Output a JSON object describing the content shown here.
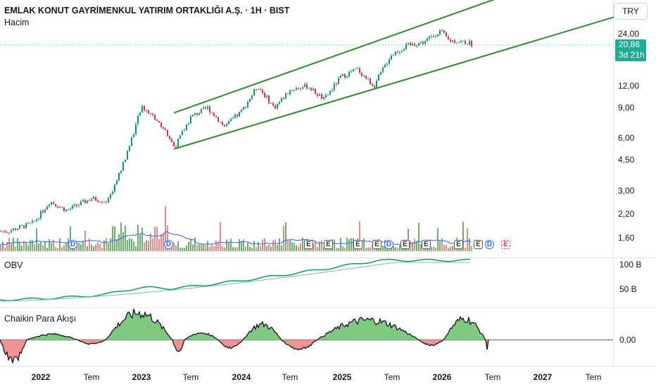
{
  "header": {
    "title": "EMLAK KONUT GAYRİMENKUL YATIRIM ORTAKLIĞI A.Ş. · 1H · BIST",
    "volume_label": "Hacim"
  },
  "currency": "TRY",
  "last_price": {
    "value": "20,86",
    "countdown": "3d 21h",
    "color": "#22ab94"
  },
  "price_axis": {
    "scale": "log",
    "ticks": [
      "24,00",
      "12,00",
      "9,00",
      "6,00",
      "4,50",
      "3,00",
      "2,20",
      "1,60"
    ]
  },
  "panes": {
    "obv": {
      "label": "OBV",
      "ticks": [
        "100 B",
        "50 B"
      ]
    },
    "chaikin": {
      "label": "Chaikin Para Akışı",
      "ticks": [
        "0,00"
      ]
    }
  },
  "time_axis": [
    {
      "label": "2022",
      "year": true
    },
    {
      "label": "Tem",
      "year": false
    },
    {
      "label": "2023",
      "year": true
    },
    {
      "label": "Tem",
      "year": false
    },
    {
      "label": "2024",
      "year": true
    },
    {
      "label": "Tem",
      "year": false
    },
    {
      "label": "2025",
      "year": true
    },
    {
      "label": "Tem",
      "year": false
    },
    {
      "label": "2026",
      "year": true
    },
    {
      "label": "Tem",
      "year": false
    },
    {
      "label": "2027",
      "year": true
    },
    {
      "label": "Tem",
      "year": false
    }
  ],
  "event_markers": {
    "dividend": "D",
    "earnings": "E"
  },
  "colors": {
    "up": "#22ab94",
    "down": "#f23645",
    "candle_up": "#089981",
    "candle_down": "#e03040",
    "channel": "#2e8b2e",
    "volume_ma": "#2962ff",
    "obv_line": "#089981"
  },
  "chart_data": {
    "type": "candlestick",
    "title": "EMLAK KONUT GAYRİMENKUL YATIRIM ORTAKLIĞI A.Ş. · 1H · BIST",
    "y_scale": "log",
    "ylim": [
      1.35,
      40
    ],
    "x_range": [
      "2021-09",
      "2027-10"
    ],
    "price_path": [
      {
        "date": "2021-09",
        "close": 1.75
      },
      {
        "date": "2021-12",
        "close": 1.95
      },
      {
        "date": "2022-02",
        "close": 2.6
      },
      {
        "date": "2022-04",
        "close": 2.3
      },
      {
        "date": "2022-07",
        "close": 2.7
      },
      {
        "date": "2022-09",
        "close": 2.6
      },
      {
        "date": "2022-11",
        "close": 4.5
      },
      {
        "date": "2023-01",
        "close": 9.0
      },
      {
        "date": "2023-02",
        "close": 8.5
      },
      {
        "date": "2023-04",
        "close": 6.5
      },
      {
        "date": "2023-05",
        "close": 5.3
      },
      {
        "date": "2023-07",
        "close": 8.0
      },
      {
        "date": "2023-09",
        "close": 9.0
      },
      {
        "date": "2023-11",
        "close": 7.0
      },
      {
        "date": "2024-01",
        "close": 8.5
      },
      {
        "date": "2024-03",
        "close": 12.0
      },
      {
        "date": "2024-05",
        "close": 9.0
      },
      {
        "date": "2024-07",
        "close": 11.5
      },
      {
        "date": "2024-09",
        "close": 12.0
      },
      {
        "date": "2024-11",
        "close": 10.0
      },
      {
        "date": "2025-01",
        "close": 13.5
      },
      {
        "date": "2025-03",
        "close": 15.0
      },
      {
        "date": "2025-05",
        "close": 12.0
      },
      {
        "date": "2025-07",
        "close": 18.0
      },
      {
        "date": "2025-09",
        "close": 20.5
      },
      {
        "date": "2025-11",
        "close": 21.5
      },
      {
        "date": "2026-01",
        "close": 25.0
      },
      {
        "date": "2026-02",
        "close": 22.0
      },
      {
        "date": "2026-04",
        "close": 21.5
      },
      {
        "date": "2026-05",
        "close": 20.86
      }
    ],
    "channel": {
      "lower": [
        {
          "date": "2023-05",
          "price": 5.2
        },
        {
          "date": "2027-12",
          "price": 32.0
        }
      ],
      "upper": [
        {
          "date": "2023-05",
          "price": 8.4
        },
        {
          "date": "2026-09",
          "price": 40.0
        }
      ]
    },
    "obv": {
      "ticks": [
        "100 B",
        "50 B"
      ],
      "trend": "rising"
    },
    "chaikin_money_flow": {
      "zero_line": "0,00",
      "trend": "oscillating"
    }
  }
}
